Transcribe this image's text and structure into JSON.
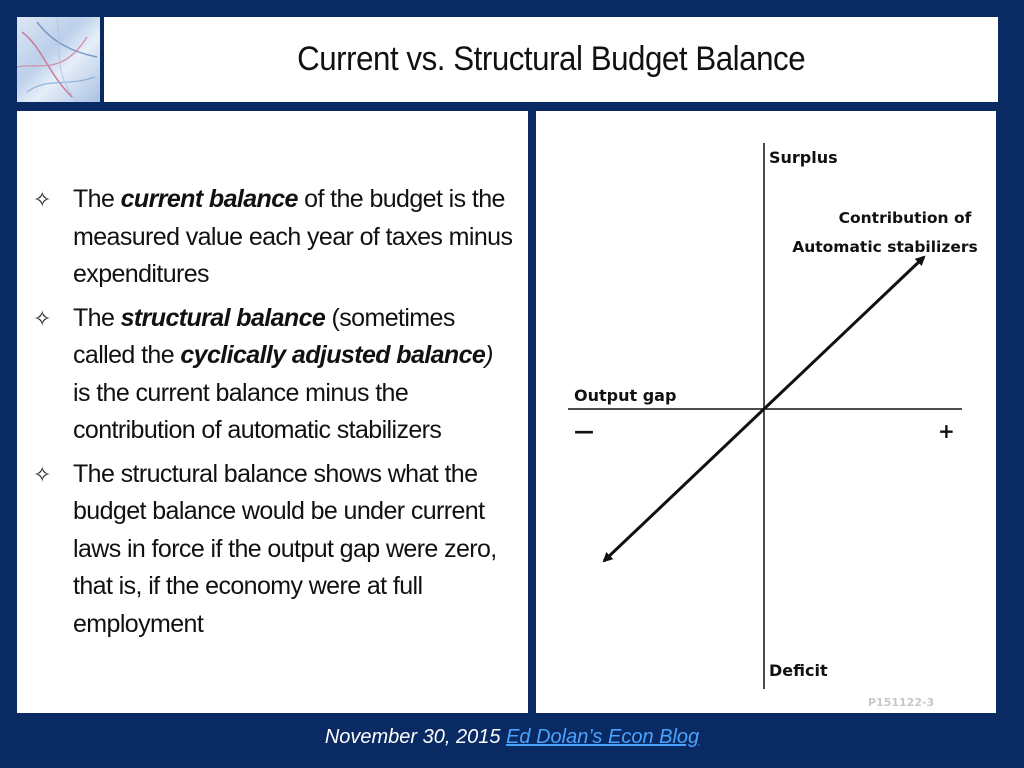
{
  "slide": {
    "title": "Current vs. Structural Budget Balance"
  },
  "bullets": [
    {
      "parts": [
        {
          "text": "The ",
          "style": "normal"
        },
        {
          "text": "current balance",
          "style": "bold-italic"
        },
        {
          "text": " of the budget is the measured value each year of taxes minus expenditures",
          "style": "normal"
        }
      ]
    },
    {
      "parts": [
        {
          "text": "The ",
          "style": "normal"
        },
        {
          "text": "structural balance",
          "style": "bold-italic"
        },
        {
          "text": " (sometimes called the ",
          "style": "normal"
        },
        {
          "text": "cyclically adjusted balance",
          "style": "bold-italic"
        },
        {
          "text": ")",
          "style": "italic"
        },
        {
          "text": " is the current balance minus the contribution of automatic stabilizers",
          "style": "normal"
        }
      ]
    },
    {
      "parts": [
        {
          "text": "The structural balance shows what the budget balance would be under current laws in force if the output gap were zero, that is, if the economy were at full employment",
          "style": "normal"
        }
      ]
    }
  ],
  "bullet_icon": "four-point-star-outline-icon",
  "diagram": {
    "y_top_label": "Surplus",
    "y_bottom_label": "Deficit",
    "x_label": "Output gap",
    "x_minus": "—",
    "x_plus": "+",
    "line_label_1": "Contribution of",
    "line_label_2": "Automatic stabilizers",
    "slide_code": "P151122-3"
  },
  "footer": {
    "date": "November 30, 2015",
    "link_text": "Ed Dolan’s Econ Blog"
  },
  "colors": {
    "background": "#0a2a63",
    "panel": "#ffffff",
    "link": "#4aa3ff"
  }
}
